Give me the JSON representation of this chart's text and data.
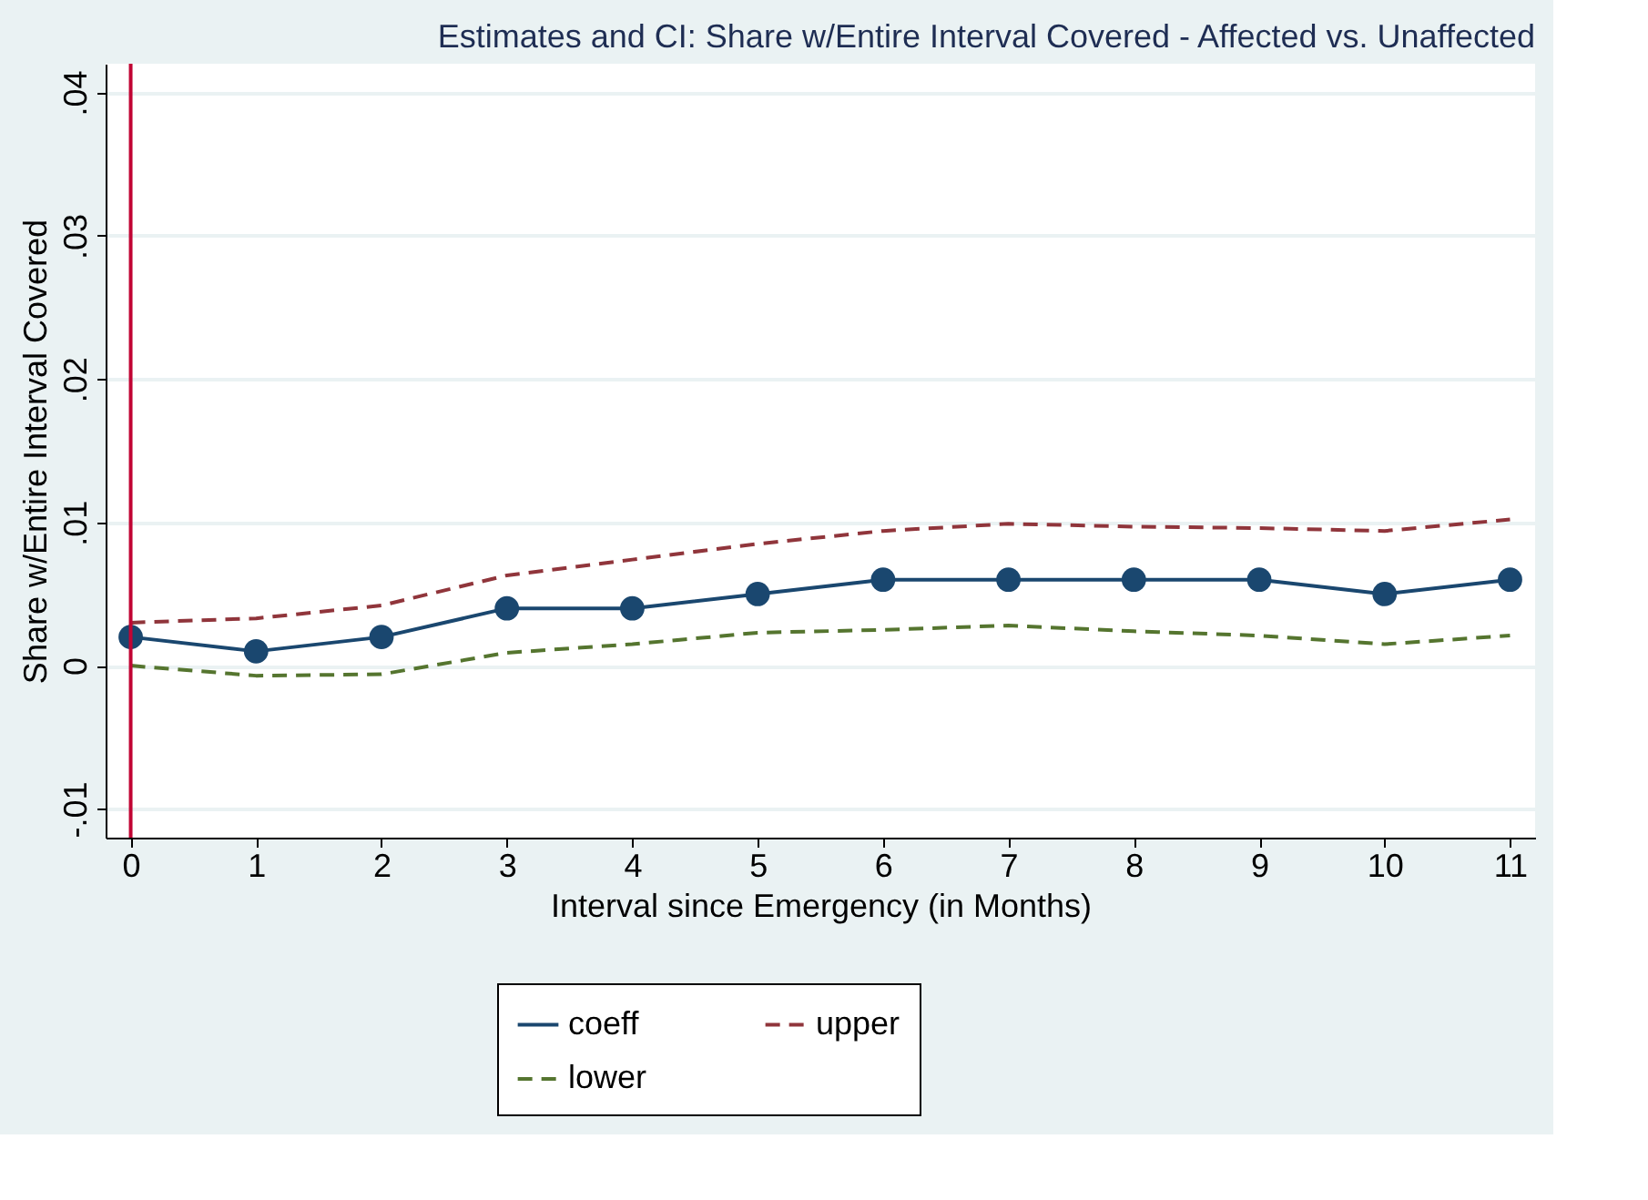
{
  "chart_data": {
    "type": "line",
    "title": "Estimates and CI: Share w/Entire Interval Covered - Affected vs. Unaffected",
    "xlabel": "Interval since Emergency (in Months)",
    "ylabel": "Share w/Entire Interval Covered",
    "x": [
      0,
      1,
      2,
      3,
      4,
      5,
      6,
      7,
      8,
      9,
      10,
      11
    ],
    "series": [
      {
        "name": "coeff",
        "color": "#1a476f",
        "marker": "circle",
        "line_style": "solid",
        "values": [
          0.002,
          0.001,
          0.002,
          0.004,
          0.004,
          0.005,
          0.006,
          0.006,
          0.006,
          0.006,
          0.005,
          0.006
        ]
      },
      {
        "name": "upper",
        "color": "#90353b",
        "marker": "none",
        "line_style": "dashed",
        "values": [
          0.003,
          0.0033,
          0.0042,
          0.0063,
          0.0074,
          0.0085,
          0.0094,
          0.0099,
          0.0097,
          0.0096,
          0.0094,
          0.0102
        ]
      },
      {
        "name": "lower",
        "color": "#55752f",
        "marker": "none",
        "line_style": "dashed",
        "values": [
          0.0,
          -0.0007,
          -0.0006,
          0.0009,
          0.0015,
          0.0023,
          0.0025,
          0.0028,
          0.0024,
          0.0021,
          0.0015,
          0.0021
        ]
      }
    ],
    "xlim": [
      -0.2,
      11.2
    ],
    "xticks": [
      0,
      1,
      2,
      3,
      4,
      5,
      6,
      7,
      8,
      9,
      10,
      11
    ],
    "ylim": [
      -0.012,
      0.042
    ],
    "yticks": [
      {
        "value": -0.01,
        "label": "-.01"
      },
      0,
      {
        "value": 0.01,
        "label": ".01"
      },
      {
        "value": 0.02,
        "label": ".02"
      },
      {
        "value": 0.03,
        "label": ".03"
      },
      {
        "value": 0.04,
        "label": ".04"
      }
    ],
    "ref_lines": [
      {
        "axis": "x",
        "value": 0,
        "color": "#c10534"
      }
    ],
    "grid": "y",
    "legend": "bottom"
  }
}
